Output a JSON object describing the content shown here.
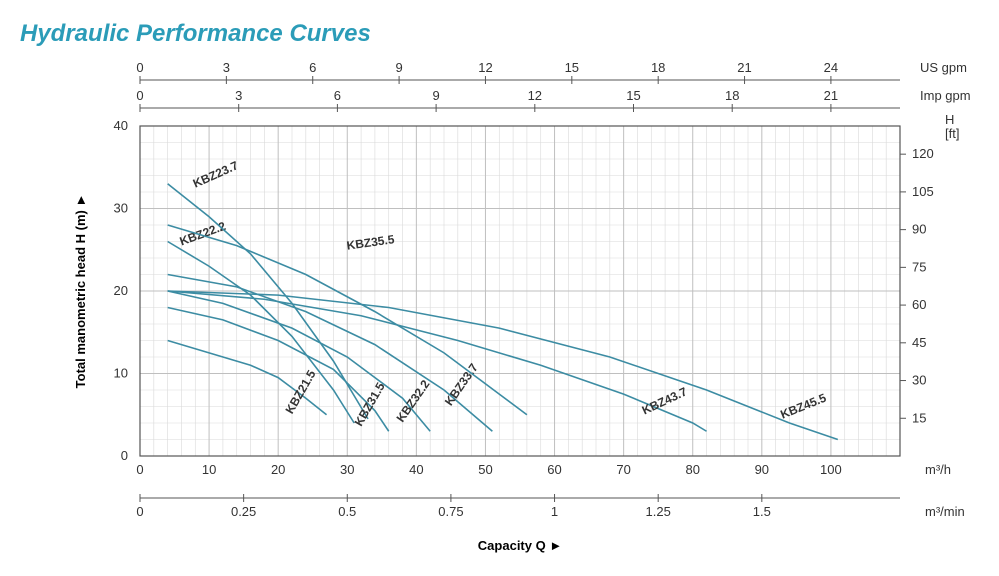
{
  "title": "Hydraulic Performance Curves",
  "title_color": "#2b9cb8",
  "chart": {
    "type": "line",
    "background_color": "#ffffff",
    "grid_color": "#bfbfbf",
    "grid_minor_color": "#d9d9d9",
    "curve_color": "#3c8ca3",
    "curve_width": 1.6,
    "x_axis": {
      "label": "Capacity Q   ►",
      "unit_main": "m³/h",
      "min": 0,
      "max": 110,
      "ticks": [
        0,
        10,
        20,
        30,
        40,
        50,
        60,
        70,
        80,
        90,
        100
      ],
      "second": {
        "unit": "m³/min",
        "ticks": [
          0,
          0.25,
          0.5,
          0.75,
          1.0,
          1.25,
          1.5
        ]
      },
      "top1": {
        "unit": "US gpm",
        "ticks": [
          0,
          3,
          6,
          9,
          12,
          15,
          18,
          21,
          24
        ]
      },
      "top2": {
        "unit": "Imp gpm",
        "ticks": [
          0,
          3,
          6,
          9,
          12,
          15,
          18,
          21
        ]
      }
    },
    "y_axis": {
      "label": "Total manometric head H (m)   ►",
      "min": 0,
      "max": 40,
      "ticks": [
        0,
        10,
        20,
        30,
        40
      ],
      "right": {
        "unit_top": "H",
        "unit_sub": "[ft]",
        "ticks": [
          15,
          30,
          45,
          60,
          75,
          90,
          105,
          120
        ]
      }
    },
    "series": [
      {
        "name": "KBZ21.5",
        "label_xy": [
          22,
          5
        ],
        "label_rot": -60,
        "points": [
          [
            4,
            14
          ],
          [
            10,
            12.5
          ],
          [
            16,
            11
          ],
          [
            20,
            9.5
          ],
          [
            24,
            7
          ],
          [
            27,
            5
          ]
        ]
      },
      {
        "name": "KBZ22.2",
        "label_xy": [
          6,
          25.5
        ],
        "label_rot": -20,
        "points": [
          [
            4,
            26
          ],
          [
            10,
            23
          ],
          [
            16,
            19.5
          ],
          [
            22,
            14.5
          ],
          [
            28,
            8
          ],
          [
            31,
            4
          ]
        ]
      },
      {
        "name": "KBZ23.7",
        "label_xy": [
          8,
          32.5
        ],
        "label_rot": -24,
        "points": [
          [
            4,
            33
          ],
          [
            10,
            29
          ],
          [
            16,
            24.5
          ],
          [
            22,
            18.5
          ],
          [
            28,
            11.5
          ],
          [
            33,
            4.5
          ]
        ]
      },
      {
        "name": "KBZ31.5",
        "label_xy": [
          32,
          3.5
        ],
        "label_rot": -60,
        "points": [
          [
            4,
            18
          ],
          [
            12,
            16.5
          ],
          [
            20,
            14
          ],
          [
            28,
            10.5
          ],
          [
            34,
            5.5
          ],
          [
            36,
            3
          ]
        ]
      },
      {
        "name": "KBZ32.2",
        "label_xy": [
          38,
          4
        ],
        "label_rot": -55,
        "points": [
          [
            4,
            20
          ],
          [
            12,
            18.5
          ],
          [
            22,
            15.5
          ],
          [
            30,
            12
          ],
          [
            38,
            7
          ],
          [
            42,
            3
          ]
        ]
      },
      {
        "name": "KBZ33.7",
        "label_xy": [
          45,
          6
        ],
        "label_rot": -55,
        "points": [
          [
            4,
            22
          ],
          [
            14,
            20.5
          ],
          [
            24,
            17.5
          ],
          [
            34,
            13.5
          ],
          [
            44,
            8
          ],
          [
            51,
            3
          ]
        ]
      },
      {
        "name": "KBZ35.5",
        "label_xy": [
          30,
          25
        ],
        "label_rot": -8,
        "points": [
          [
            4,
            28
          ],
          [
            14,
            25.5
          ],
          [
            24,
            22
          ],
          [
            34,
            17.5
          ],
          [
            44,
            12.5
          ],
          [
            52,
            7.5
          ],
          [
            56,
            5
          ]
        ]
      },
      {
        "name": "KBZ43.7",
        "label_xy": [
          73,
          5
        ],
        "label_rot": -25,
        "points": [
          [
            4,
            20
          ],
          [
            18,
            19
          ],
          [
            32,
            17
          ],
          [
            46,
            14
          ],
          [
            58,
            11
          ],
          [
            70,
            7.5
          ],
          [
            80,
            4
          ],
          [
            82,
            3
          ]
        ]
      },
      {
        "name": "KBZ45.5",
        "label_xy": [
          93,
          4.5
        ],
        "label_rot": -22,
        "points": [
          [
            4,
            20
          ],
          [
            20,
            19.5
          ],
          [
            36,
            18
          ],
          [
            52,
            15.5
          ],
          [
            68,
            12
          ],
          [
            82,
            8
          ],
          [
            94,
            4
          ],
          [
            101,
            2
          ]
        ]
      }
    ]
  }
}
